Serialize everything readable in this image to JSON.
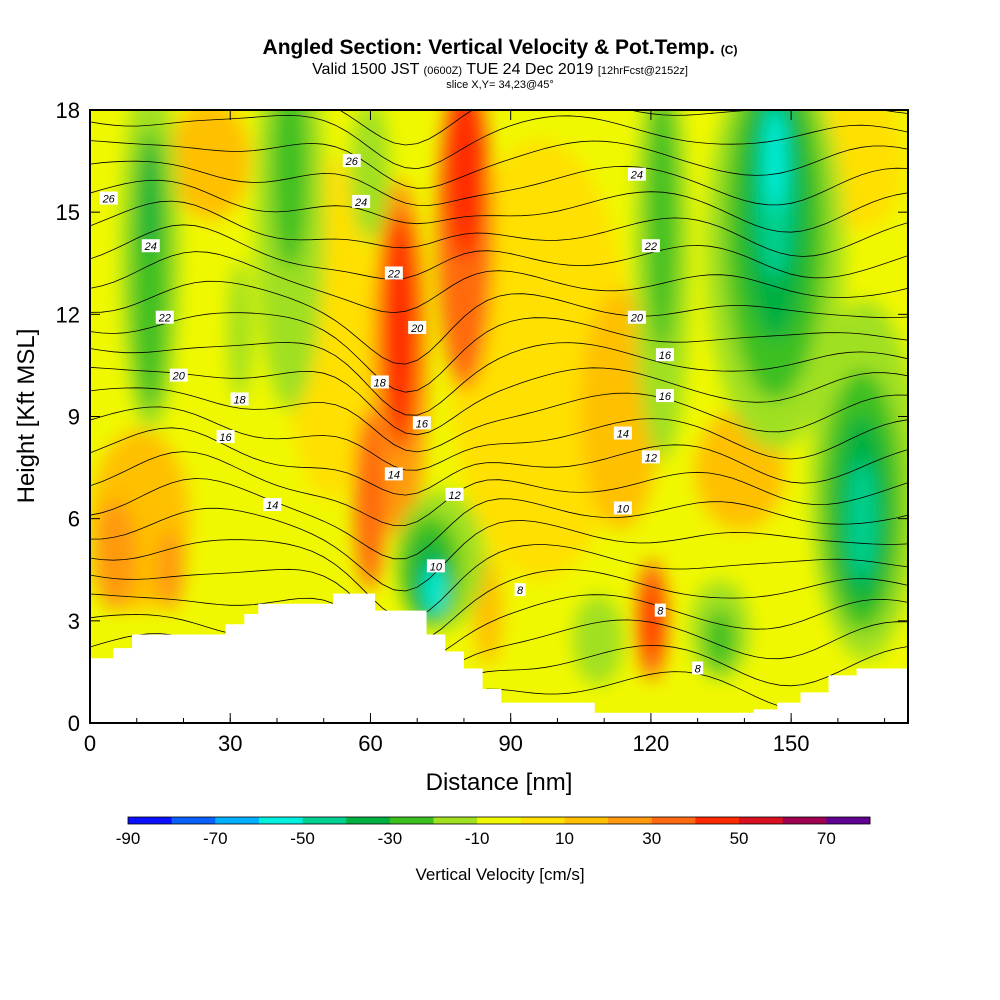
{
  "title": {
    "main": "Angled Section: Vertical Velocity & Pot.Temp.",
    "main_unit": "(C)",
    "valid_prefix": "Valid 1500 JST",
    "valid_utc": "(0600Z)",
    "valid_date": "TUE 24 Dec 2019",
    "forecast": "[12hrFcst@2152z]",
    "slice": "slice X,Y= 34,23@45°"
  },
  "chart_data": {
    "type": "heatmap",
    "xlabel": "Distance [nm]",
    "ylabel": "Height [Kft MSL]",
    "xlim": [
      0,
      175
    ],
    "ylim": [
      0,
      18
    ],
    "xticks": [
      0,
      30,
      60,
      90,
      120,
      150
    ],
    "yticks": [
      0,
      3,
      6,
      9,
      12,
      15,
      18
    ],
    "colorbar": {
      "label": "Vertical Velocity [cm/s]",
      "range": [
        -90,
        80
      ],
      "step": 10,
      "tick_labels": [
        "-90",
        "-70",
        "-50",
        "-30",
        "-10",
        "10",
        "30",
        "50",
        "70"
      ],
      "tick_values": [
        -90,
        -70,
        -50,
        -30,
        -10,
        10,
        30,
        50,
        70
      ],
      "colors": [
        "#0a10ff",
        "#0960ff",
        "#00b0ff",
        "#00f0e0",
        "#00d090",
        "#00b040",
        "#3cc020",
        "#a0e020",
        "#f0f800",
        "#ffe000",
        "#ffc000",
        "#ff9a10",
        "#ff6a10",
        "#ff2a00",
        "#d81020",
        "#a00050",
        "#600090"
      ]
    },
    "terrain_profile": [
      [
        0,
        1.9
      ],
      [
        5,
        2.2
      ],
      [
        9,
        2.6
      ],
      [
        20,
        2.6
      ],
      [
        29,
        2.9
      ],
      [
        33,
        3.2
      ],
      [
        36,
        3.5
      ],
      [
        49,
        3.5
      ],
      [
        52,
        3.8
      ],
      [
        59,
        3.8
      ],
      [
        61,
        3.3
      ],
      [
        70,
        3.3
      ],
      [
        72,
        2.6
      ],
      [
        76,
        2.1
      ],
      [
        80,
        1.6
      ],
      [
        84,
        1.0
      ],
      [
        88,
        0.6
      ],
      [
        105,
        0.6
      ],
      [
        108,
        0.3
      ],
      [
        130,
        0.3
      ],
      [
        142,
        0.4
      ],
      [
        147,
        0.6
      ],
      [
        152,
        0.9
      ],
      [
        158,
        1.4
      ],
      [
        164,
        1.6
      ],
      [
        175,
        1.6
      ]
    ],
    "velocity_features": [
      {
        "x": 78,
        "y": 12,
        "value": 50
      },
      {
        "x": 66,
        "y": 11,
        "value": 40
      },
      {
        "x": 62,
        "y": 7,
        "value": 30
      },
      {
        "x": 120,
        "y": 3,
        "value": 40
      },
      {
        "x": 5,
        "y": 5,
        "value": 20
      },
      {
        "x": 75,
        "y": 4,
        "value": -50
      },
      {
        "x": 146,
        "y": 14,
        "value": -60
      },
      {
        "x": 165,
        "y": 6,
        "value": -50
      },
      {
        "x": 14,
        "y": 13,
        "value": -30
      },
      {
        "x": 43,
        "y": 15,
        "value": -20
      },
      {
        "x": 128,
        "y": 13,
        "value": -30
      }
    ],
    "isotherm_labels": [
      {
        "text": "26",
        "x": 4,
        "y": 15.4
      },
      {
        "text": "24",
        "x": 13,
        "y": 14.0
      },
      {
        "text": "22",
        "x": 16,
        "y": 11.9
      },
      {
        "text": "20",
        "x": 19,
        "y": 10.2
      },
      {
        "text": "18",
        "x": 32,
        "y": 9.5
      },
      {
        "text": "16",
        "x": 29,
        "y": 8.4
      },
      {
        "text": "14",
        "x": 39,
        "y": 6.4
      },
      {
        "text": "26",
        "x": 56,
        "y": 16.5
      },
      {
        "text": "24",
        "x": 58,
        "y": 15.3
      },
      {
        "text": "22",
        "x": 65,
        "y": 13.2
      },
      {
        "text": "20",
        "x": 70,
        "y": 11.6
      },
      {
        "text": "18",
        "x": 62,
        "y": 10.0
      },
      {
        "text": "16",
        "x": 71,
        "y": 8.8
      },
      {
        "text": "14",
        "x": 65,
        "y": 7.3
      },
      {
        "text": "12",
        "x": 78,
        "y": 6.7
      },
      {
        "text": "10",
        "x": 74,
        "y": 4.6
      },
      {
        "text": "8",
        "x": 92,
        "y": 3.9
      },
      {
        "text": "24",
        "x": 117,
        "y": 16.1
      },
      {
        "text": "22",
        "x": 120,
        "y": 14.0
      },
      {
        "text": "20",
        "x": 117,
        "y": 11.9
      },
      {
        "text": "16",
        "x": 123,
        "y": 10.8
      },
      {
        "text": "16",
        "x": 123,
        "y": 9.6
      },
      {
        "text": "14",
        "x": 114,
        "y": 8.5
      },
      {
        "text": "12",
        "x": 120,
        "y": 7.8
      },
      {
        "text": "10",
        "x": 114,
        "y": 6.3
      },
      {
        "text": "8",
        "x": 122,
        "y": 3.3
      },
      {
        "text": "8",
        "x": 130,
        "y": 1.6
      }
    ]
  }
}
